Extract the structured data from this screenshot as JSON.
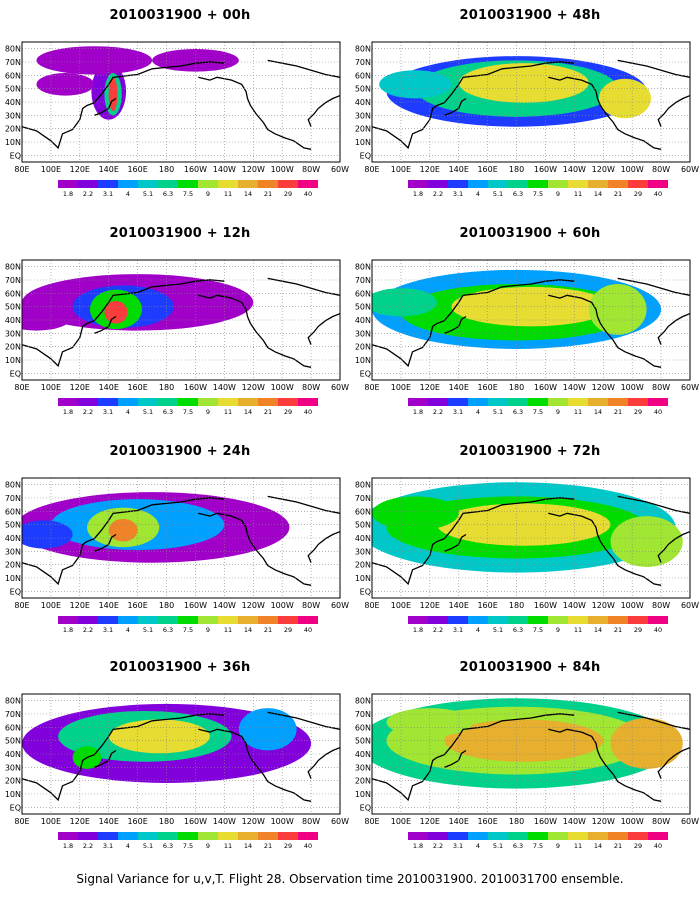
{
  "panels": [
    {
      "title": "2010031900 + 00h"
    },
    {
      "title": "2010031900 + 48h"
    },
    {
      "title": "2010031900 + 12h"
    },
    {
      "title": "2010031900 + 60h"
    },
    {
      "title": "2010031900 + 24h"
    },
    {
      "title": "2010031900 + 72h"
    },
    {
      "title": "2010031900 + 36h"
    },
    {
      "title": "2010031900 + 84h"
    }
  ],
  "lon_labels": [
    "80E",
    "100E",
    "120E",
    "140E",
    "160E",
    "180",
    "160W",
    "140W",
    "120W",
    "100W",
    "80W",
    "60W"
  ],
  "lat_labels": [
    "80N",
    "70N",
    "60N",
    "50N",
    "40N",
    "30N",
    "20N",
    "10N",
    "EQ"
  ],
  "colorbar": {
    "labels": [
      "1.8",
      "2.2",
      "3.1",
      "4",
      "5.1",
      "6.3",
      "7.5",
      "9",
      "11",
      "14",
      "21",
      "29",
      "40"
    ],
    "colors": [
      "#a000c8",
      "#8200dc",
      "#1e3cff",
      "#00a0ff",
      "#00c8c8",
      "#00d28c",
      "#00dc00",
      "#a0e632",
      "#e6dc32",
      "#e6af2d",
      "#f08228",
      "#fa3c3c",
      "#f00082"
    ]
  },
  "footer": "Signal Variance for u,v,T. Flight 28. Observation time 2010031900. 2010031700 ensemble."
}
